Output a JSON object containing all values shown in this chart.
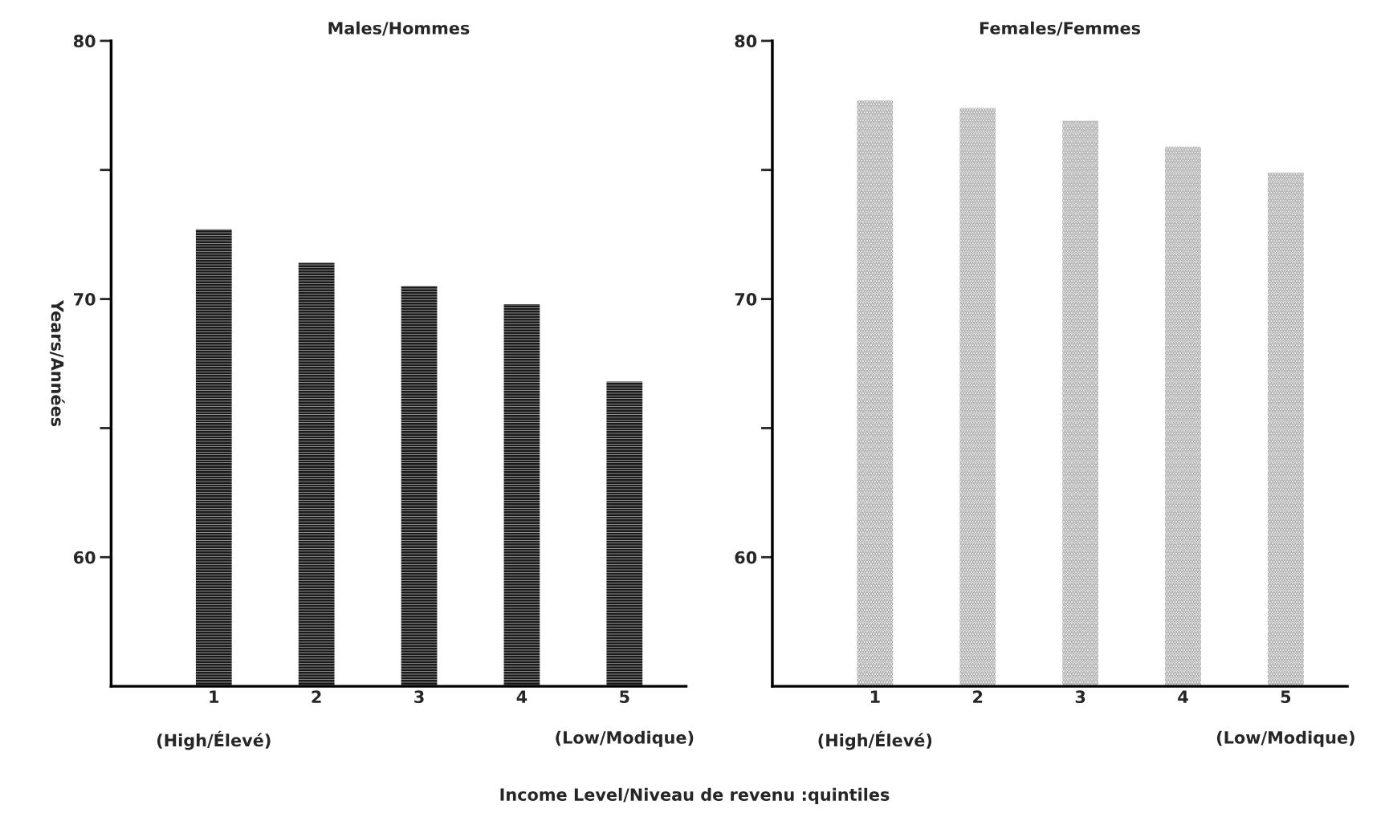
{
  "chart_data": [
    {
      "type": "bar",
      "title": "Males/Hommes",
      "ylabel": "Years/Années",
      "xlabel": "Income Level/Niveau de revenu :quintiles",
      "categories": [
        "1",
        "2",
        "3",
        "4",
        "5"
      ],
      "values": [
        72.7,
        71.4,
        70.5,
        69.8,
        66.8
      ],
      "color": "#1a1a1a",
      "ylim": [
        55,
        80
      ],
      "yticks": [
        {
          "value": 60,
          "label": "60"
        },
        {
          "value": 65,
          "label": null
        },
        {
          "value": 70,
          "label": "70"
        },
        {
          "value": 75,
          "label": null
        },
        {
          "value": 80,
          "label": "80"
        }
      ],
      "grid": false,
      "legend": false,
      "annotations": [
        "(High/Élevé)",
        "(Low/Modique)"
      ]
    },
    {
      "type": "bar",
      "title": "Females/Femmes",
      "categories": [
        "1",
        "2",
        "3",
        "4",
        "5"
      ],
      "values": [
        77.7,
        77.4,
        76.9,
        75.9,
        74.9
      ],
      "color": "#9a9a9a",
      "ylim": [
        55,
        80
      ],
      "yticks": [
        {
          "value": 60,
          "label": "60"
        },
        {
          "value": 65,
          "label": null
        },
        {
          "value": 70,
          "label": "70"
        },
        {
          "value": 75,
          "label": null
        },
        {
          "value": 80,
          "label": "80"
        }
      ],
      "grid": false,
      "legend": false,
      "annotations": [
        "(High/Élevé)",
        "(Low/Modique)"
      ]
    }
  ]
}
